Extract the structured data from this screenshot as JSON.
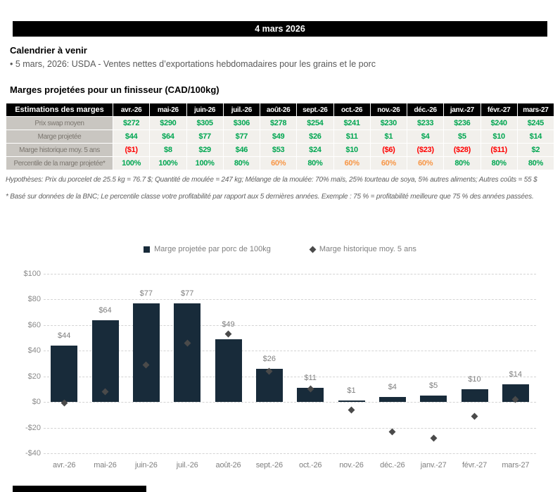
{
  "banner": {
    "date": "4 mars 2026"
  },
  "calendar": {
    "title": "Calendrier à venir",
    "item": "• 5 mars, 2026: USDA - Ventes nettes d’exportations hebdomadaires pour les grains et le porc"
  },
  "margins": {
    "title": "Marges projetées pour un finisseur (CAD/100kg)",
    "table": {
      "corner_label": "Estimations des marges",
      "months": [
        "avr.-26",
        "mai-26",
        "juin-26",
        "juil.-26",
        "août-26",
        "sept.-26",
        "oct.-26",
        "nov.-26",
        "déc.-26",
        "janv.-27",
        "févr.-27",
        "mars-27"
      ],
      "palette": {
        "positive": "#00a651",
        "negative": "#ff0000",
        "warning": "#f79646"
      },
      "rows": [
        {
          "label": "Prix swap moyen",
          "cells": [
            {
              "t": "$272",
              "c": "green"
            },
            {
              "t": "$290",
              "c": "green"
            },
            {
              "t": "$305",
              "c": "green"
            },
            {
              "t": "$306",
              "c": "green"
            },
            {
              "t": "$278",
              "c": "green"
            },
            {
              "t": "$254",
              "c": "green"
            },
            {
              "t": "$241",
              "c": "green"
            },
            {
              "t": "$230",
              "c": "green"
            },
            {
              "t": "$233",
              "c": "green"
            },
            {
              "t": "$236",
              "c": "green"
            },
            {
              "t": "$240",
              "c": "green"
            },
            {
              "t": "$245",
              "c": "green"
            }
          ]
        },
        {
          "label": "Marge projetée",
          "cells": [
            {
              "t": "$44",
              "c": "green"
            },
            {
              "t": "$64",
              "c": "green"
            },
            {
              "t": "$77",
              "c": "green"
            },
            {
              "t": "$77",
              "c": "green"
            },
            {
              "t": "$49",
              "c": "green"
            },
            {
              "t": "$26",
              "c": "green"
            },
            {
              "t": "$11",
              "c": "green"
            },
            {
              "t": "$1",
              "c": "green"
            },
            {
              "t": "$4",
              "c": "green"
            },
            {
              "t": "$5",
              "c": "green"
            },
            {
              "t": "$10",
              "c": "green"
            },
            {
              "t": "$14",
              "c": "green"
            }
          ]
        },
        {
          "label": "Marge historique moy. 5 ans",
          "cells": [
            {
              "t": "($1)",
              "c": "red"
            },
            {
              "t": "$8",
              "c": "green"
            },
            {
              "t": "$29",
              "c": "green"
            },
            {
              "t": "$46",
              "c": "green"
            },
            {
              "t": "$53",
              "c": "green"
            },
            {
              "t": "$24",
              "c": "green"
            },
            {
              "t": "$10",
              "c": "green"
            },
            {
              "t": "($6)",
              "c": "red"
            },
            {
              "t": "($23)",
              "c": "red"
            },
            {
              "t": "($28)",
              "c": "red"
            },
            {
              "t": "($11)",
              "c": "red"
            },
            {
              "t": "$2",
              "c": "green"
            }
          ]
        },
        {
          "label": "Percentile de la marge projetée*",
          "cells": [
            {
              "t": "100%",
              "c": "green"
            },
            {
              "t": "100%",
              "c": "green"
            },
            {
              "t": "100%",
              "c": "green"
            },
            {
              "t": "80%",
              "c": "green"
            },
            {
              "t": "60%",
              "c": "orange"
            },
            {
              "t": "80%",
              "c": "green"
            },
            {
              "t": "60%",
              "c": "orange"
            },
            {
              "t": "60%",
              "c": "orange"
            },
            {
              "t": "60%",
              "c": "orange"
            },
            {
              "t": "80%",
              "c": "green"
            },
            {
              "t": "80%",
              "c": "green"
            },
            {
              "t": "80%",
              "c": "green"
            }
          ]
        }
      ]
    },
    "footnotes": [
      "Hypothèses: Prix du porcelet de 25.5 kg = 76.7 $; Quantité de moulée = 247 kg; Mélange de la moulée: 70% maïs, 25% tourteau de soya, 5% autres aliments; Autres coûts = 55 $",
      "* Basé sur données de la BNC; Le percentile classe votre profitabilité par rapport aux 5 dernières années. Exemple : 75 % = profitabilité meilleure que 75 % des années passées."
    ]
  },
  "chart_data": {
    "type": "bar",
    "categories": [
      "avr.-26",
      "mai-26",
      "juin-26",
      "juil.-26",
      "août-26",
      "sept.-26",
      "oct.-26",
      "nov.-26",
      "déc.-26",
      "janv.-27",
      "févr.-27",
      "mars-27"
    ],
    "series": [
      {
        "name": "Marge projetée par porc de 100kg",
        "kind": "bar",
        "values": [
          44,
          64,
          77,
          77,
          49,
          26,
          11,
          1,
          4,
          5,
          10,
          14
        ],
        "color": "#182b3a"
      },
      {
        "name": "Marge historique moy. 5 ans",
        "kind": "scatter-diamond",
        "values": [
          -1,
          8,
          29,
          46,
          53,
          24,
          10,
          -6,
          -23,
          -28,
          -11,
          2
        ],
        "color": "#4a4a4a"
      }
    ],
    "bar_labels": [
      "$44",
      "$64",
      "$77",
      "$77",
      "$49",
      "$26",
      "$11",
      "$1",
      "$4",
      "$5",
      "$10",
      "$14"
    ],
    "yticks": [
      {
        "v": 100,
        "label": "$100"
      },
      {
        "v": 80,
        "label": "$80"
      },
      {
        "v": 60,
        "label": "$60"
      },
      {
        "v": 40,
        "label": "$40"
      },
      {
        "v": 20,
        "label": "$20"
      },
      {
        "v": 0,
        "label": "$0"
      },
      {
        "v": -20,
        "label": "-$20"
      },
      {
        "v": -40,
        "label": "-$40"
      }
    ],
    "ylim": [
      -40,
      100
    ],
    "grid": "dashed-horizontal",
    "legend_position": "top-center"
  }
}
